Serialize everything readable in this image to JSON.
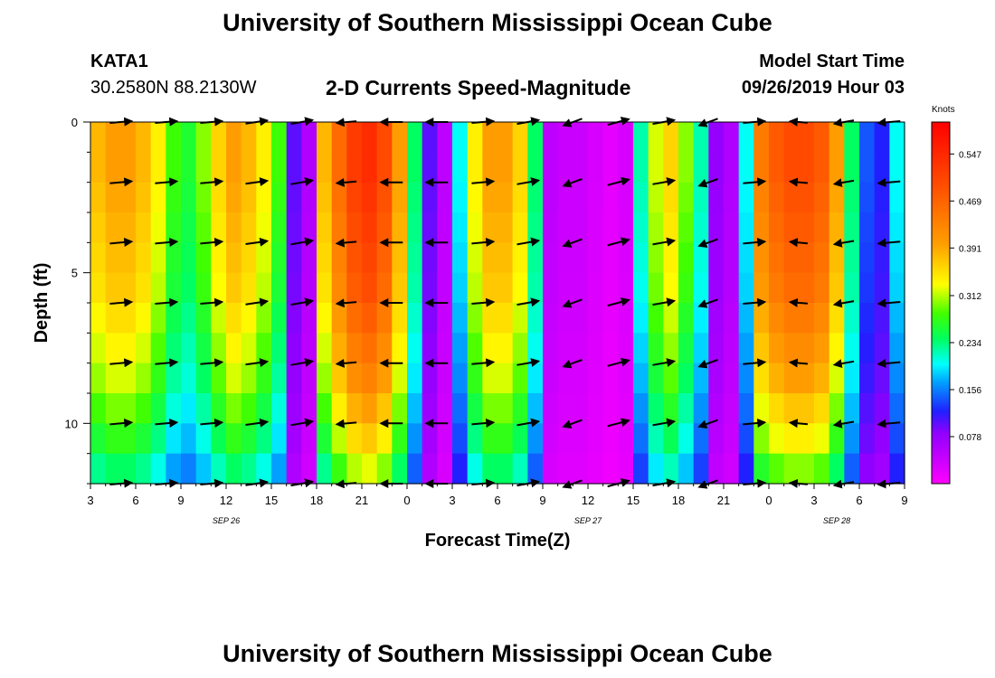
{
  "header": {
    "title": "University of Southern Mississippi Ocean Cube",
    "station_id": "KATA1",
    "station_coords": "30.2580N 88.2130W",
    "chart_title": "2-D Currents Speed-Magnitude",
    "model_start_label": "Model Start Time",
    "model_start_value": "09/26/2019 Hour 03"
  },
  "footer": {
    "title": "University of Southern Mississippi Ocean Cube"
  },
  "chart_data": {
    "type": "heatmap",
    "title": "2-D Currents Speed-Magnitude",
    "xlabel": "Forecast Time(Z)",
    "ylabel": "Depth (ft)",
    "x_range_hours": [
      0,
      54
    ],
    "x_tick_labels": [
      "3",
      "6",
      "9",
      "12",
      "15",
      "18",
      "21",
      "0",
      "3",
      "6",
      "9",
      "12",
      "15",
      "18",
      "21",
      "0",
      "3",
      "6",
      "9"
    ],
    "date_labels": [
      {
        "label": "SEP 26",
        "hour": 9
      },
      {
        "label": "SEP 27",
        "hour": 33
      },
      {
        "label": "SEP 28",
        "hour": 49.5
      }
    ],
    "y_range_ft": [
      0,
      12
    ],
    "y_tick_labels": [
      "0",
      "5",
      "10"
    ],
    "colorbar": {
      "unit": "Knots",
      "range": [
        0,
        0.6
      ],
      "tick_values": [
        0.078,
        0.156,
        0.234,
        0.312,
        0.391,
        0.469,
        0.547
      ],
      "tick_labels": [
        "0.078",
        "0.156",
        "0.234",
        "0.312",
        "0.391",
        "0.469",
        "0.547"
      ]
    },
    "surface_speed_by_hour": [
      0.38,
      0.4,
      0.4,
      0.38,
      0.34,
      0.28,
      0.26,
      0.3,
      0.36,
      0.4,
      0.38,
      0.34,
      0.28,
      0.1,
      0.06,
      0.38,
      0.46,
      0.52,
      0.54,
      0.5,
      0.4,
      0.24,
      0.1,
      0.05,
      0.2,
      0.34,
      0.4,
      0.4,
      0.36,
      0.24,
      0.05,
      0.04,
      0.04,
      0.03,
      0.02,
      0.03,
      0.22,
      0.32,
      0.36,
      0.3,
      0.22,
      0.08,
      0.06,
      0.2,
      0.44,
      0.48,
      0.5,
      0.5,
      0.48,
      0.4,
      0.24,
      0.14,
      0.12,
      0.2,
      0.36
    ],
    "depth_factor_by_ft": [
      1.0,
      1.0,
      0.98,
      0.96,
      0.94,
      0.92,
      0.88,
      0.84,
      0.8,
      0.74,
      0.68,
      0.6
    ],
    "vector_rows_ft": [
      0,
      2,
      4,
      6,
      8,
      10,
      12
    ],
    "vector_cols_hours": [
      2,
      5,
      8,
      11,
      14,
      17,
      20,
      23,
      26,
      29,
      32,
      35,
      38,
      41,
      44,
      47,
      50,
      53
    ],
    "vector_dir_deg_by_col": [
      5,
      5,
      5,
      8,
      10,
      185,
      180,
      180,
      5,
      10,
      200,
      15,
      10,
      200,
      5,
      175,
      190,
      185
    ],
    "vector_length_by_col": [
      1,
      1,
      1,
      1,
      1,
      0.9,
      1,
      1,
      1,
      1,
      0.9,
      1,
      1,
      0.9,
      1,
      0.8,
      0.9,
      1
    ]
  }
}
